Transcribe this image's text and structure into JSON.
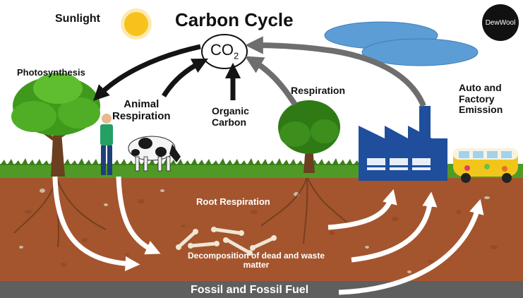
{
  "title": "Carbon Cycle",
  "labels": {
    "sunlight": "Sunlight",
    "photosynthesis": "Photosynthesis",
    "animal_respiration": "Animal\nRespiration",
    "organic_carbon": "Organic\nCarbon",
    "respiration": "Respiration",
    "auto_factory": "Auto and\nFactory\nEmission",
    "root_respiration": "Root Respiration",
    "decomposition": "Decomposition of dead and waste matter",
    "fossil_fuel": "Fossil and Fossil Fuel"
  },
  "co2": {
    "base": "CO",
    "subscript": "2"
  },
  "brand": "DewWool",
  "colors": {
    "soil": "#a4552e",
    "soil_dark": "#8c4222",
    "grass": "#4f9a26",
    "fossil_band": "#5f5f5f",
    "factory": "#1f4e9c",
    "sun": "#f7c21b",
    "cloud": "#5d9dd6",
    "tree_green": "#3f9a1c",
    "arrow_dark": "#141414",
    "arrow_grey": "#6e6e6e",
    "arrow_white": "#ffffff"
  },
  "icons": [
    "sun-icon",
    "cloud-icon",
    "tree-icon",
    "person-icon",
    "cow-icon",
    "factory-icon",
    "van-icon",
    "bone-icon",
    "arrow-icon"
  ]
}
